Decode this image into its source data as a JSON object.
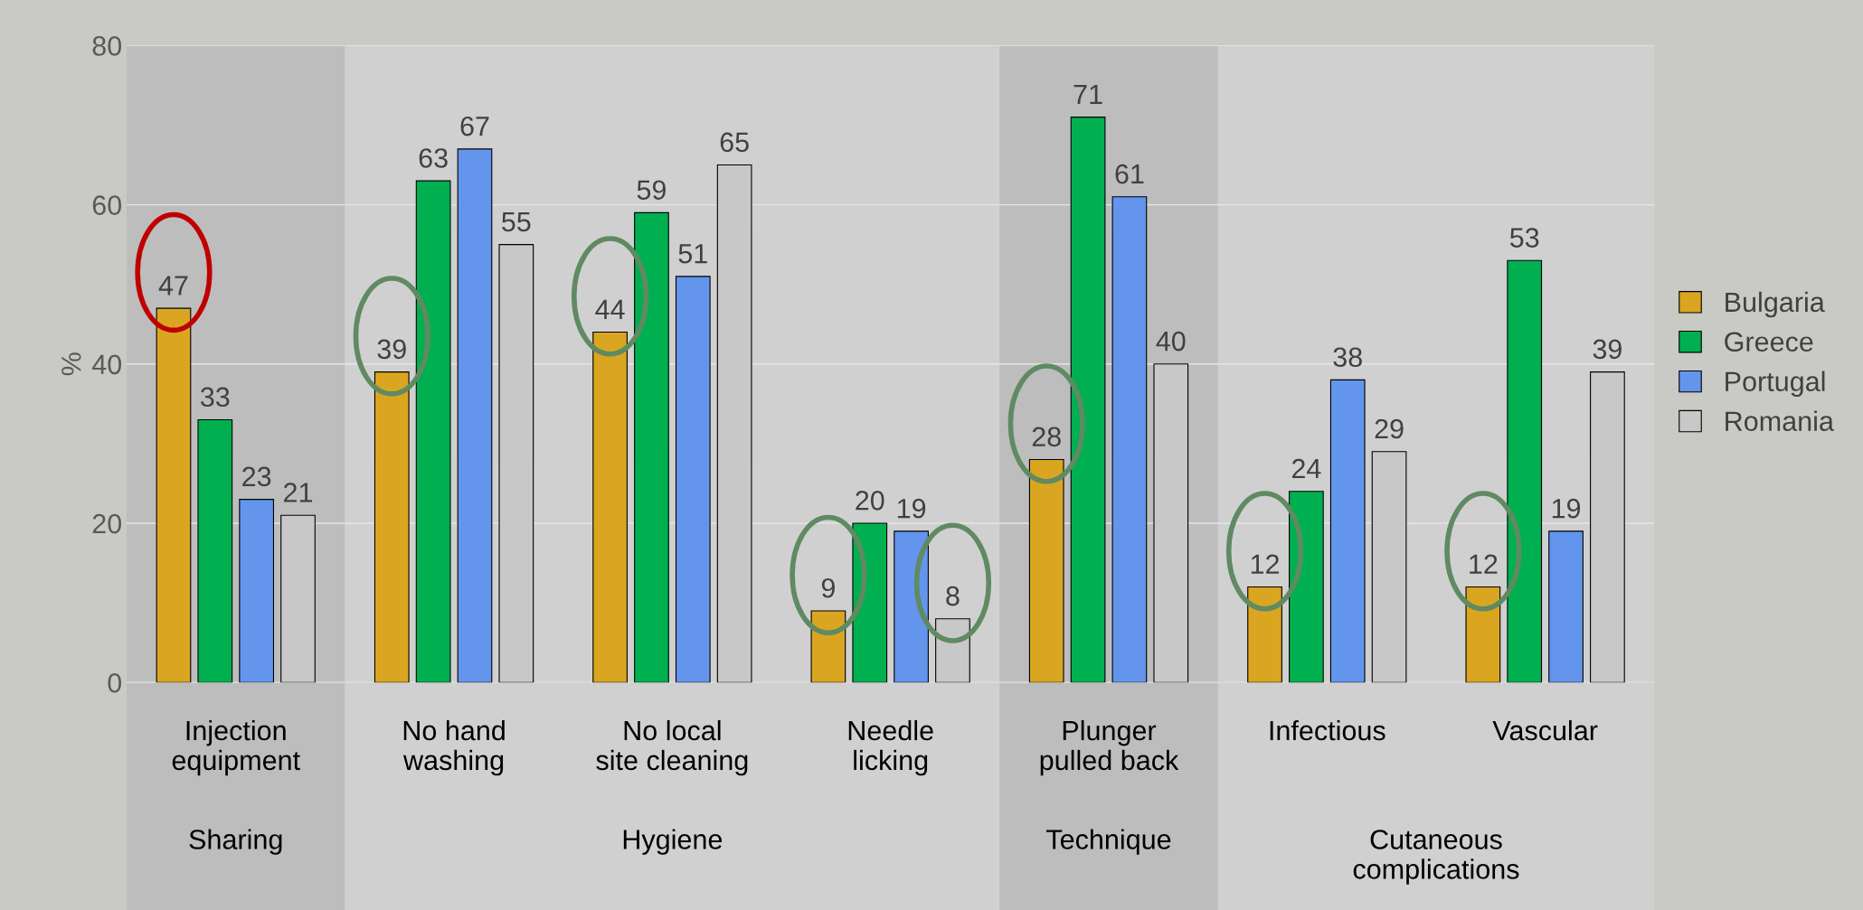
{
  "chart_data": {
    "type": "bar",
    "ylabel": "%",
    "categories": [
      "Injection\nequipment",
      "No hand\nwashing",
      "No local\nsite cleaning",
      "Needle\nlicking",
      "Plunger\npulled back",
      "Infectious",
      "Vascular"
    ],
    "series": [
      {
        "name": "Bulgaria",
        "color": "#daa520",
        "values": [
          47,
          39,
          44,
          9,
          28,
          12,
          12
        ]
      },
      {
        "name": "Greece",
        "color": "#00b050",
        "values": [
          33,
          63,
          59,
          20,
          71,
          24,
          53
        ]
      },
      {
        "name": "Portugal",
        "color": "#6495ed",
        "values": [
          23,
          67,
          51,
          19,
          61,
          38,
          19
        ]
      },
      {
        "name": "Romania",
        "color": "#c8c8c8",
        "values": [
          21,
          55,
          65,
          8,
          40,
          29,
          39
        ]
      }
    ],
    "annotations": [
      "Sharing",
      "Hygiene",
      "Technique",
      "Cutaneous\ncomplications"
    ],
    "ylim": [
      0,
      80
    ],
    "yticks": [
      0,
      20,
      40,
      60,
      80
    ],
    "grid": "y",
    "legend": "right",
    "data_labels": true
  }
}
